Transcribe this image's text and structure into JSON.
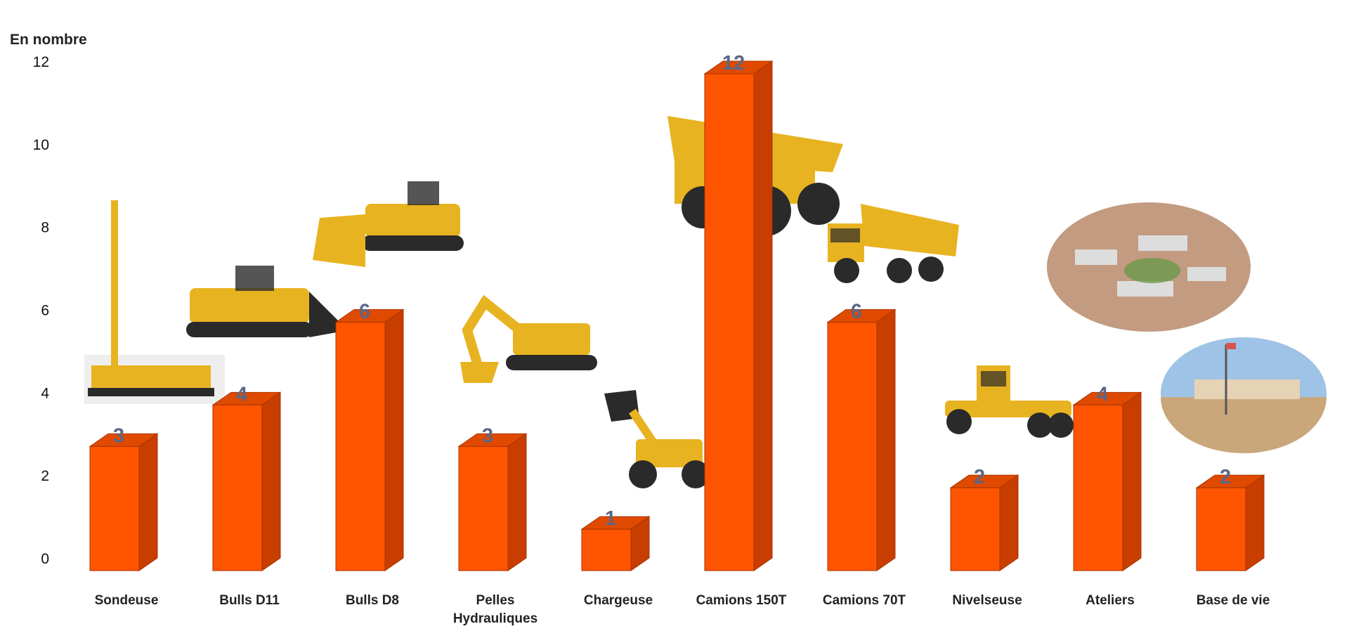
{
  "chart_data": {
    "type": "bar",
    "ylabel": "En nombre",
    "ylim": [
      0,
      12
    ],
    "yticks": [
      0,
      2,
      4,
      6,
      8,
      10,
      12
    ],
    "grid": false,
    "legend": "none",
    "bar_color": "#ff5500",
    "bar_side_color": "#c73e00",
    "bar_top_color": "#e04a00",
    "categories": [
      [
        "Sondeuse"
      ],
      [
        "Bulls D11"
      ],
      [
        "Bulls D8"
      ],
      [
        "Pelles",
        "Hydrauliques"
      ],
      [
        "Chargeuse"
      ],
      [
        "Camions 150T"
      ],
      [
        "Camions 70T"
      ],
      [
        "Nivelseuse"
      ],
      [
        "Ateliers"
      ],
      [
        "Base de vie"
      ]
    ],
    "values": [
      3,
      4,
      6,
      3,
      1,
      12,
      6,
      2,
      4,
      2
    ],
    "icons": [
      "drilling-rig-photo",
      "bulldozer-d11-photo",
      "bulldozer-d8-photo",
      "hydraulic-excavator-photo",
      "wheel-loader-photo",
      "haul-truck-150t-photo",
      "dump-truck-70t-photo",
      "motor-grader-photo",
      "workshop-buildings-photo",
      "living-quarters-photo"
    ]
  }
}
